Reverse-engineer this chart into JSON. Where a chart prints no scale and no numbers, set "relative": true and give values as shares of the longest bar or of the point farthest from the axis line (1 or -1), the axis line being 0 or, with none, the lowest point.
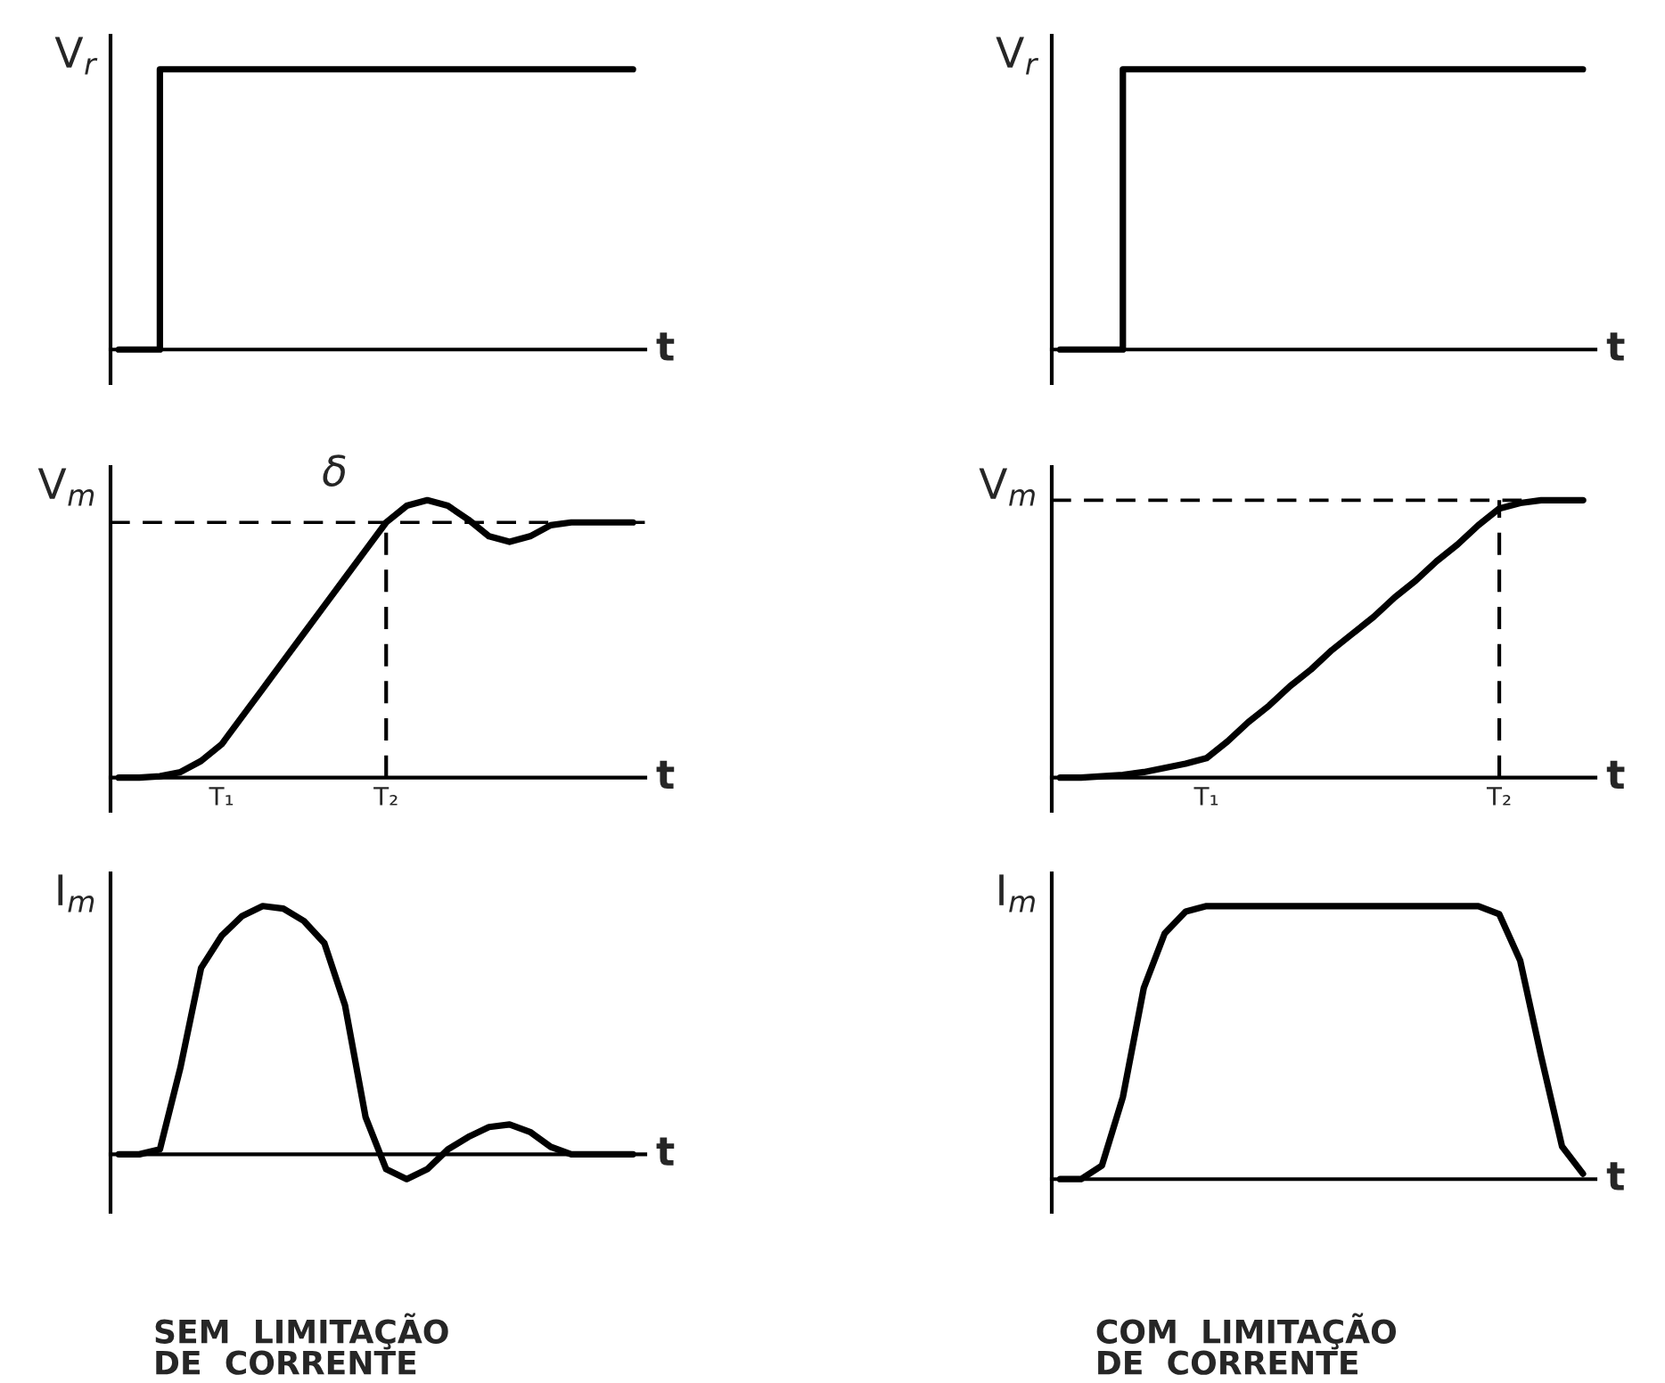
{
  "chart_data": [
    {
      "type": "step",
      "relative": true,
      "ylabel": "V$_{r}$",
      "xlabel": "t",
      "categories": [
        null,
        null,
        null,
        null,
        null,
        null,
        null,
        null,
        null,
        null,
        null,
        null,
        null,
        null,
        null,
        null,
        null,
        null,
        null,
        null,
        null,
        null,
        null,
        null,
        null,
        null
      ],
      "series": [
        {
          "color": "#000000",
          "values": [
            0,
            0,
            1,
            1,
            1,
            1,
            1,
            1,
            1,
            1,
            1,
            1,
            1,
            1,
            1,
            1,
            1,
            1,
            1,
            1,
            1,
            1,
            1,
            1,
            1,
            1
          ]
        }
      ]
    },
    {
      "type": "step",
      "relative": true,
      "ylabel": "V$_{r}$",
      "xlabel": "t",
      "categories": [
        null,
        null,
        null,
        null,
        null,
        null,
        null,
        null,
        null,
        null,
        null,
        null,
        null,
        null,
        null,
        null,
        null,
        null,
        null,
        null,
        null,
        null,
        null,
        null,
        null,
        null
      ],
      "series": [
        {
          "color": "#000000",
          "values": [
            0,
            0,
            0,
            1,
            1,
            1,
            1,
            1,
            1,
            1,
            1,
            1,
            1,
            1,
            1,
            1,
            1,
            1,
            1,
            1,
            1,
            1,
            1,
            1,
            1,
            1
          ]
        }
      ]
    },
    {
      "type": "line",
      "relative": true,
      "ylabel": "V$_{m}$",
      "xlabel": "t",
      "categories": [
        null,
        null,
        null,
        null,
        null,
        "T₁",
        null,
        null,
        null,
        null,
        null,
        null,
        null,
        "T₂",
        null,
        null,
        null,
        null,
        null,
        null,
        null,
        null,
        null,
        null,
        null,
        null
      ],
      "series": [
        {
          "color": "#000000",
          "values": [
            0,
            0,
            0.005,
            0.02,
            0.06,
            0.12,
            0.22,
            0.32,
            0.42,
            0.52,
            0.62,
            0.72,
            0.82,
            0.92,
            0.98,
            1.0,
            0.98,
            0.93,
            0.87,
            0.85,
            0.87,
            0.91,
            0.92,
            0.92,
            0.92,
            0.92
          ]
        }
      ],
      "ref_lines": [
        {
          "axis": "y",
          "value": 0.92,
          "color": "#000000",
          "line_style": "dashed"
        },
        {
          "axis": "x",
          "value": "T₂",
          "color": "#000000",
          "line_style": "dashed"
        }
      ],
      "annotations": [
        "δ"
      ]
    },
    {
      "type": "line",
      "relative": true,
      "ylabel": "V$_{m}$",
      "xlabel": "t",
      "categories": [
        null,
        null,
        null,
        null,
        null,
        null,
        null,
        "T₁",
        null,
        null,
        null,
        null,
        null,
        null,
        null,
        null,
        null,
        null,
        null,
        null,
        null,
        "T₂",
        null,
        null,
        null,
        null
      ],
      "series": [
        {
          "color": "#000000",
          "values": [
            0,
            0,
            0.005,
            0.01,
            0.02,
            0.035,
            0.05,
            0.07,
            0.13,
            0.2,
            0.26,
            0.33,
            0.39,
            0.46,
            0.52,
            0.58,
            0.65,
            0.71,
            0.78,
            0.84,
            0.91,
            0.97,
            0.99,
            1,
            1,
            1
          ]
        }
      ],
      "ref_lines": [
        {
          "axis": "y",
          "value": 1,
          "color": "#000000",
          "line_style": "dashed"
        },
        {
          "axis": "x",
          "value": "T₂",
          "color": "#000000",
          "line_style": "dashed"
        }
      ]
    },
    {
      "type": "line",
      "relative": true,
      "ylabel": "I$_{m}$",
      "xlabel": "t",
      "categories": [
        null,
        null,
        null,
        null,
        null,
        null,
        null,
        null,
        null,
        null,
        null,
        null,
        null,
        null,
        null,
        null,
        null,
        null,
        null,
        null,
        null,
        null,
        null,
        null,
        null,
        null
      ],
      "series": [
        {
          "color": "#000000",
          "values": [
            0,
            0,
            0.02,
            0.35,
            0.75,
            0.88,
            0.96,
            1.0,
            0.99,
            0.94,
            0.85,
            0.6,
            0.15,
            -0.06,
            -0.1,
            -0.06,
            0.02,
            0.07,
            0.11,
            0.12,
            0.09,
            0.03,
            0,
            0,
            0,
            0
          ]
        }
      ],
      "annotations": [
        "SEM  LIMITAÇÃO\nDE  CORRENTE"
      ]
    },
    {
      "type": "line",
      "relative": true,
      "ylabel": "I$_{m}$",
      "xlabel": "t",
      "categories": [
        null,
        null,
        null,
        null,
        null,
        null,
        null,
        null,
        null,
        null,
        null,
        null,
        null,
        null,
        null,
        null,
        null,
        null,
        null,
        null,
        null,
        null,
        null,
        null,
        null,
        null
      ],
      "series": [
        {
          "color": "#000000",
          "values": [
            0,
            0,
            0.05,
            0.3,
            0.7,
            0.9,
            0.98,
            1,
            1,
            1,
            1,
            1,
            1,
            1,
            1,
            1,
            1,
            1,
            1,
            1,
            1,
            0.97,
            0.8,
            0.45,
            0.12,
            0.02
          ]
        }
      ],
      "annotations": [
        "COM  LIMITAÇÃO\nDE  CORRENTE"
      ]
    }
  ]
}
